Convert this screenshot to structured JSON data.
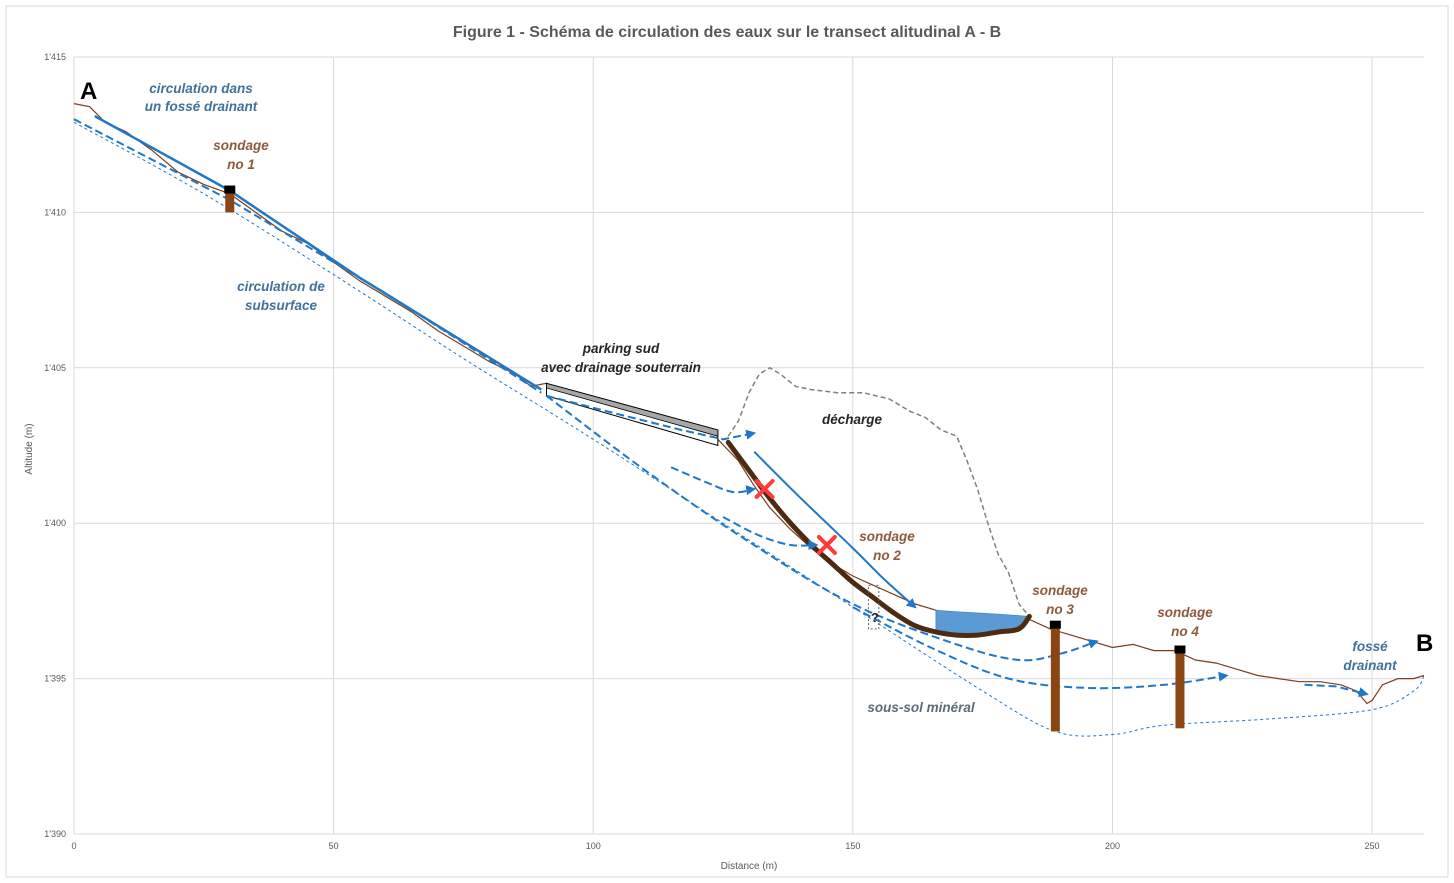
{
  "chart_data": {
    "type": "line",
    "title": "Figure 1 - Schéma de circulation des eaux sur le transect alitudinal A - B",
    "xlabel": "Distance (m)",
    "ylabel": "Altitude (m)",
    "xlim": [
      0,
      260
    ],
    "ylim": [
      1390,
      1415
    ],
    "x_ticks": [
      "0",
      "50",
      "100",
      "150",
      "200",
      "250"
    ],
    "y_ticks": [
      "1'390",
      "1'395",
      "1'400",
      "1'405",
      "1'410",
      "1'415"
    ],
    "grid": true,
    "terrain_profile": {
      "x": [
        0,
        3,
        6,
        10,
        15,
        20,
        25,
        30,
        35,
        40,
        45,
        50,
        55,
        60,
        65,
        70,
        75,
        80,
        85,
        88,
        91,
        95,
        100,
        105,
        110,
        115,
        120,
        124,
        128,
        131,
        134,
        138,
        142,
        146,
        150,
        154,
        158,
        162,
        166,
        170,
        175,
        180,
        184,
        188,
        192,
        196,
        200,
        204,
        208,
        212,
        216,
        220,
        224,
        228,
        232,
        236,
        240,
        244,
        247,
        249,
        250,
        252,
        255,
        258,
        260
      ],
      "y": [
        1413.5,
        1413.4,
        1412.9,
        1412.6,
        1412.0,
        1411.3,
        1410.9,
        1410.6,
        1410.0,
        1409.4,
        1409.0,
        1408.4,
        1407.8,
        1407.3,
        1406.8,
        1406.2,
        1405.7,
        1405.2,
        1404.8,
        1404.4,
        1404.5,
        1404.2,
        1403.9,
        1403.6,
        1403.4,
        1403.1,
        1402.9,
        1402.7,
        1402.0,
        1401.2,
        1400.5,
        1399.8,
        1399.2,
        1398.7,
        1398.3,
        1398.0,
        1397.7,
        1397.4,
        1397.2,
        1397.0,
        1396.9,
        1396.9,
        1396.9,
        1396.6,
        1396.4,
        1396.2,
        1396.0,
        1396.1,
        1395.9,
        1395.9,
        1395.6,
        1395.5,
        1395.3,
        1395.1,
        1395.0,
        1394.9,
        1394.9,
        1394.8,
        1394.6,
        1394.2,
        1394.3,
        1394.8,
        1395.0,
        1395.0,
        1395.1
      ]
    },
    "mineral_subsoil": {
      "x": [
        0,
        25,
        50,
        75,
        100,
        125,
        150,
        175,
        189,
        200,
        210,
        230,
        250,
        258,
        260
      ],
      "y": [
        1412.9,
        1410.6,
        1408.0,
        1405.3,
        1402.7,
        1400.0,
        1397.3,
        1394.6,
        1393.3,
        1393.2,
        1393.5,
        1393.7,
        1394.0,
        1394.6,
        1395.1
      ]
    },
    "surface_flow_ditch": {
      "x": [
        4,
        30,
        55,
        90
      ],
      "y": [
        1413.1,
        1410.7,
        1407.9,
        1404.3
      ]
    },
    "subsurface_flow": {
      "x": [
        0,
        30,
        60,
        90
      ],
      "y": [
        1413.0,
        1410.4,
        1407.4,
        1404.2
      ]
    },
    "parking": {
      "x": [
        91,
        124
      ],
      "y_top": [
        1404.5,
        1403.0
      ],
      "y_bottom": [
        1404.1,
        1402.5
      ]
    },
    "drainage_outlet_flow": {
      "x": [
        91,
        105,
        117,
        125,
        131
      ],
      "y": [
        1404.1,
        1403.5,
        1403.0,
        1402.7,
        1402.9
      ]
    },
    "dump_outline": {
      "x": [
        126,
        128,
        130,
        132,
        134,
        136,
        139,
        142,
        147,
        152,
        157,
        161,
        164,
        167,
        170,
        172,
        174,
        176,
        178,
        180,
        181,
        182,
        184
      ],
      "y": [
        1402.8,
        1403.3,
        1404.2,
        1404.8,
        1405.0,
        1404.8,
        1404.4,
        1404.3,
        1404.2,
        1404.2,
        1404.0,
        1403.6,
        1403.4,
        1403.0,
        1402.8,
        1402.0,
        1401.1,
        1400.0,
        1399.0,
        1398.4,
        1397.9,
        1397.4,
        1397.0
      ]
    },
    "dump_barrier": {
      "x": [
        126,
        130,
        134,
        138,
        142,
        146,
        150,
        154,
        158,
        162,
        166,
        170,
        174,
        178,
        182,
        184
      ],
      "y": [
        1402.6,
        1401.7,
        1400.8,
        1400.0,
        1399.3,
        1398.7,
        1398.1,
        1397.6,
        1397.1,
        1396.7,
        1396.5,
        1396.4,
        1396.4,
        1396.5,
        1396.6,
        1397.0
      ]
    },
    "leachate_pond": {
      "x": [
        166,
        170,
        175,
        180,
        184
      ],
      "y_top": [
        1397.2,
        1397.15,
        1397.1,
        1397.05,
        1397.0
      ],
      "y_bottom": [
        1396.5,
        1396.4,
        1396.4,
        1396.5,
        1396.9
      ]
    },
    "runoff_on_dump": {
      "x": [
        131,
        140,
        150,
        156,
        162
      ],
      "y": [
        1402.3,
        1400.8,
        1399.2,
        1398.2,
        1397.3
      ]
    },
    "blocked_subsurface_flows": [
      {
        "x": [
          115,
          122,
          127,
          131
        ],
        "y": [
          1401.8,
          1401.3,
          1401.0,
          1401.1
        ]
      },
      {
        "x": [
          125,
          132,
          138,
          143
        ],
        "y": [
          1400.2,
          1399.6,
          1399.3,
          1399.3
        ]
      }
    ],
    "blocked_points": [
      {
        "x": 133,
        "y": 1401.1
      },
      {
        "x": 145,
        "y": 1399.3
      }
    ],
    "deep_subsurface_flow_1": {
      "x": [
        91,
        110,
        130,
        150,
        170,
        182,
        190,
        197
      ],
      "y": [
        1404.1,
        1401.7,
        1399.4,
        1397.4,
        1396.1,
        1395.6,
        1395.8,
        1396.2
      ]
    },
    "deep_subsurface_flow_2": {
      "x": [
        150,
        165,
        180,
        195,
        210,
        222
      ],
      "y": [
        1397.3,
        1396.0,
        1395.0,
        1394.7,
        1394.8,
        1395.1
      ]
    },
    "ditch_flow_end": {
      "x": [
        237,
        243,
        249
      ],
      "y": [
        1394.8,
        1394.75,
        1394.5
      ]
    },
    "unknown_zone": {
      "x": [
        153,
        155
      ],
      "y_top": 1398.0,
      "y_bottom": 1396.6,
      "label": "?"
    },
    "boreholes": [
      {
        "name": "sondage no 1",
        "x": 30,
        "y_top": 1410.8,
        "y_bottom": 1410.0
      },
      {
        "name": "sondage no 2",
        "x": 153,
        "y_top": 1398.0,
        "y_bottom": 1396.6
      },
      {
        "name": "sondage no 3",
        "x": 189,
        "y_top": 1396.8,
        "y_bottom": 1393.3
      },
      {
        "name": "sondage no 4",
        "x": 213,
        "y_top": 1396.0,
        "y_bottom": 1393.4
      }
    ],
    "labels": {
      "point_a": "A",
      "point_b": "B",
      "ditch_line1": "circulation dans",
      "ditch_line2": "un fossé drainant",
      "subsurface_line1": "circulation de",
      "subsurface_line2": "subsurface",
      "borehole1_line1": "sondage",
      "borehole1_line2": "no 1",
      "borehole2_line1": "sondage",
      "borehole2_line2": "no 2",
      "borehole3_line1": "sondage",
      "borehole3_line2": "no 3",
      "borehole4_line1": "sondage",
      "borehole4_line2": "no 4",
      "parking_line1": "parking sud",
      "parking_line2": "avec drainage souterrain",
      "dump": "décharge",
      "subsoil": "sous-sol minéral",
      "ditch_b_line1": "fossé",
      "ditch_b_line2": "drainant"
    },
    "colors": {
      "terrain": "#7A3E1E",
      "water": "#1F77C9",
      "barrier": "#4E2A12",
      "borehole": "#8B4513",
      "pond": "#5B9BD5",
      "parking": "#A6A6A6",
      "dump_outline": "#808080",
      "blocked_mark": "#FF3B3B",
      "grid": "#D9D9D9"
    }
  }
}
